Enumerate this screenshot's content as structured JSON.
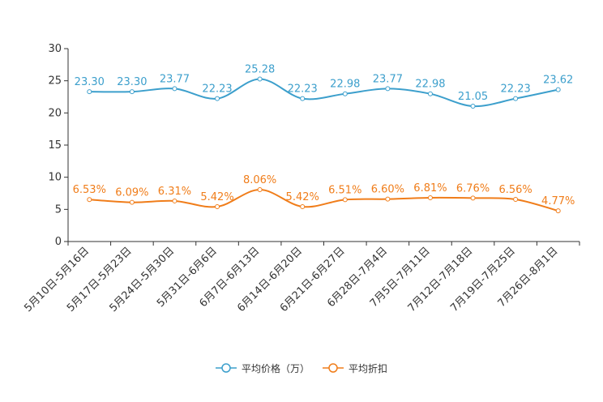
{
  "chart_data": {
    "type": "line",
    "categories": [
      "5月10日-5月16日",
      "5月17日-5月23日",
      "5月24日-5月30日",
      "5月31日-6月6日",
      "6月7日-6月13日",
      "6月14日-6月20日",
      "6月21日-6月27日",
      "6月28日-7月4日",
      "7月5日-7月11日",
      "7月12日-7月18日",
      "7月19日-7月25日",
      "7月26日-8月1日"
    ],
    "ylim": [
      0,
      30
    ],
    "yticks": [
      0,
      5,
      10,
      15,
      20,
      25,
      30
    ],
    "series": [
      {
        "name": "平均价格（万）",
        "color": "#3c9fcc",
        "values": [
          23.3,
          23.3,
          23.77,
          22.23,
          25.28,
          22.23,
          22.98,
          23.77,
          22.98,
          21.05,
          22.23,
          23.62
        ],
        "labels": [
          "23.30",
          "23.30",
          "23.77",
          "22.23",
          "25.28",
          "22.23",
          "22.98",
          "23.77",
          "22.98",
          "21.05",
          "22.23",
          "23.62"
        ]
      },
      {
        "name": "平均折扣",
        "color": "#f07d1a",
        "values": [
          6.53,
          6.09,
          6.31,
          5.42,
          8.06,
          5.42,
          6.51,
          6.6,
          6.81,
          6.76,
          6.56,
          4.77
        ],
        "labels": [
          "6.53%",
          "6.09%",
          "6.31%",
          "5.42%",
          "8.06%",
          "5.42%",
          "6.51%",
          "6.60%",
          "6.81%",
          "6.76%",
          "6.56%",
          "4.77%"
        ]
      }
    ],
    "legend_position": "bottom-center"
  }
}
